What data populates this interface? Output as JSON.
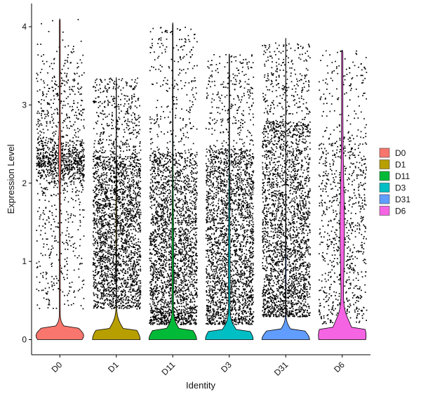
{
  "chart_data": {
    "type": "violin",
    "title": "",
    "xlabel": "Identity",
    "ylabel": "Expression Level",
    "categories": [
      "D0",
      "D1",
      "D11",
      "D3",
      "D31",
      "D6"
    ],
    "ylim": [
      -0.2,
      4.2
    ],
    "yticks": [
      0,
      1,
      2,
      3,
      4
    ],
    "grid": false,
    "legend_position": "right",
    "legend": [
      "D0",
      "D1",
      "D11",
      "D3",
      "D31",
      "D6"
    ],
    "colors": [
      "#F8766D",
      "#B79F00",
      "#00BA38",
      "#00BFC4",
      "#619CFF",
      "#F564E3"
    ],
    "series": [
      {
        "name": "D0",
        "max": 4.1,
        "points_approx": 1300
      },
      {
        "name": "D1",
        "max": 3.35,
        "points_approx": 2600
      },
      {
        "name": "D11",
        "max": 4.05,
        "points_approx": 2600
      },
      {
        "name": "D3",
        "max": 3.65,
        "points_approx": 2600
      },
      {
        "name": "D31",
        "max": 3.85,
        "points_approx": 2600
      },
      {
        "name": "D6",
        "max": 3.7,
        "points_approx": 900
      }
    ]
  }
}
